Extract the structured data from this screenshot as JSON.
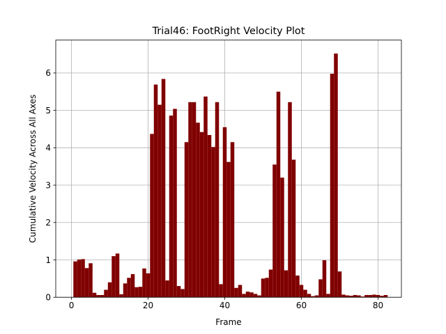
{
  "chart_data": {
    "type": "bar",
    "title": "Trial46: FootRight Velocity Plot",
    "xlabel": "Frame",
    "ylabel": "Cumulative Velocity Across All Axes",
    "xlim": [
      -4.1,
      86.1
    ],
    "ylim": [
      0,
      6.88
    ],
    "xticks": [
      0,
      20,
      40,
      60,
      80
    ],
    "yticks": [
      0,
      1,
      2,
      3,
      4,
      5,
      6
    ],
    "grid": true,
    "bar_color": "#800000",
    "bar_width": 1.0,
    "x": [
      1,
      2,
      3,
      4,
      5,
      6,
      7,
      8,
      9,
      10,
      11,
      12,
      13,
      14,
      15,
      16,
      17,
      18,
      19,
      20,
      21,
      22,
      23,
      24,
      25,
      26,
      27,
      28,
      29,
      30,
      31,
      32,
      33,
      34,
      35,
      36,
      37,
      38,
      39,
      40,
      41,
      42,
      43,
      44,
      45,
      46,
      47,
      48,
      49,
      50,
      51,
      52,
      53,
      54,
      55,
      56,
      57,
      58,
      59,
      60,
      61,
      62,
      63,
      64,
      65,
      66,
      67,
      68,
      69,
      70,
      71,
      72,
      73,
      74,
      75,
      76,
      77,
      78,
      79,
      80,
      81,
      82
    ],
    "values": [
      0.96,
      1.01,
      1.02,
      0.78,
      0.91,
      0.12,
      0.06,
      0.06,
      0.2,
      0.4,
      1.1,
      1.17,
      0.08,
      0.37,
      0.52,
      0.62,
      0.27,
      0.28,
      0.77,
      0.64,
      4.37,
      5.69,
      5.15,
      5.84,
      0.45,
      4.86,
      5.04,
      0.3,
      0.22,
      4.15,
      5.22,
      5.22,
      4.67,
      4.42,
      5.37,
      4.34,
      4.02,
      5.22,
      0.35,
      4.55,
      3.62,
      4.15,
      0.25,
      0.33,
      0.09,
      0.15,
      0.13,
      0.09,
      0.05,
      0.5,
      0.52,
      0.74,
      3.55,
      5.5,
      3.2,
      0.72,
      5.22,
      3.68,
      0.58,
      0.33,
      0.2,
      0.09,
      0.03,
      0.05,
      0.48,
      0.99,
      0.09,
      5.98,
      6.52,
      0.69,
      0.07,
      0.05,
      0.04,
      0.06,
      0.05,
      0.02,
      0.06,
      0.06,
      0.07,
      0.06,
      0.04,
      0.06
    ]
  }
}
